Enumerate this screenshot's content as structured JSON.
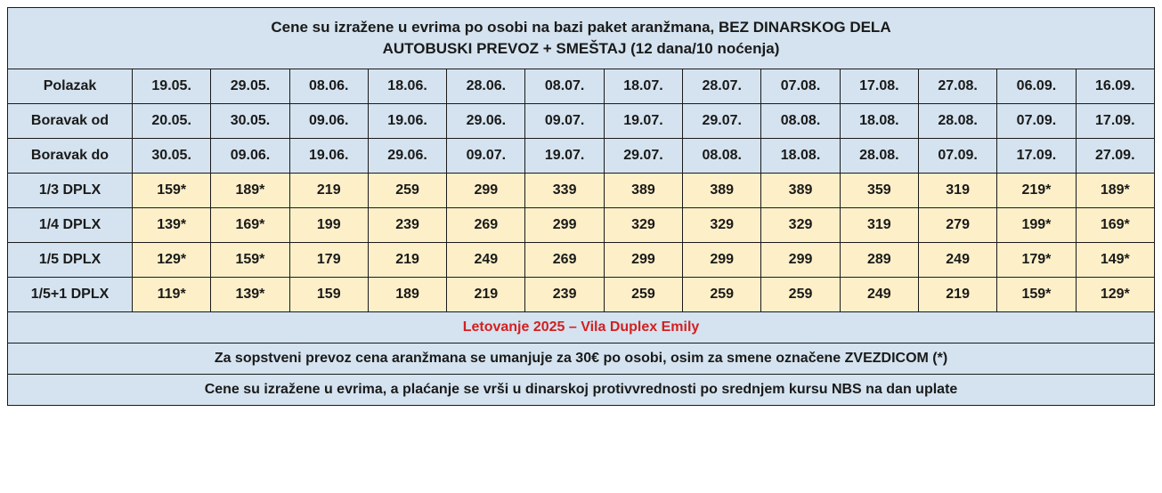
{
  "colors": {
    "header_bg": "#d4e3ef",
    "price_bg": "#fdefc8",
    "border": "#1a1a1a",
    "text": "#1a1a1a",
    "accent_red": "#d32020"
  },
  "header": {
    "line1": "Cene su izražene u evrima po osobi na bazi paket aranžmana, BEZ DINARSKOG DELA",
    "line2": "AUTOBUSKI PREVOZ + SMEŠTAJ (12 dana/10 noćenja)"
  },
  "date_rows": [
    {
      "label": "Polazak",
      "dates": [
        "19.05.",
        "29.05.",
        "08.06.",
        "18.06.",
        "28.06.",
        "08.07.",
        "18.07.",
        "28.07.",
        "07.08.",
        "17.08.",
        "27.08.",
        "06.09.",
        "16.09."
      ]
    },
    {
      "label": "Boravak od",
      "dates": [
        "20.05.",
        "30.05.",
        "09.06.",
        "19.06.",
        "29.06.",
        "09.07.",
        "19.07.",
        "29.07.",
        "08.08.",
        "18.08.",
        "28.08.",
        "07.09.",
        "17.09."
      ]
    },
    {
      "label": "Boravak do",
      "dates": [
        "30.05.",
        "09.06.",
        "19.06.",
        "29.06.",
        "09.07.",
        "19.07.",
        "29.07.",
        "08.08.",
        "18.08.",
        "28.08.",
        "07.09.",
        "17.09.",
        "27.09."
      ]
    }
  ],
  "price_rows": [
    {
      "label": "1/3 DPLX",
      "prices": [
        "159*",
        "189*",
        "219",
        "259",
        "299",
        "339",
        "389",
        "389",
        "389",
        "359",
        "319",
        "219*",
        "189*"
      ]
    },
    {
      "label": "1/4 DPLX",
      "prices": [
        "139*",
        "169*",
        "199",
        "239",
        "269",
        "299",
        "329",
        "329",
        "329",
        "319",
        "279",
        "199*",
        "169*"
      ]
    },
    {
      "label": "1/5 DPLX",
      "prices": [
        "129*",
        "159*",
        "179",
        "219",
        "249",
        "269",
        "299",
        "299",
        "299",
        "289",
        "249",
        "179*",
        "149*"
      ]
    },
    {
      "label": "1/5+1 DPLX",
      "prices": [
        "119*",
        "139*",
        "159",
        "189",
        "219",
        "239",
        "259",
        "259",
        "259",
        "249",
        "219",
        "159*",
        "129*"
      ]
    }
  ],
  "footer": {
    "title": "Letovanje 2025 – Vila Duplex Emily",
    "note1": "Za sopstveni prevoz cena aranžmana se umanjuje za 30€ po osobi, osim za smene označene ZVEZDICOM (*)",
    "note2": "Cene su izražene u evrima, a plaćanje se vrši u dinarskoj protivvrednosti po srednjem kursu NBS na dan uplate"
  }
}
